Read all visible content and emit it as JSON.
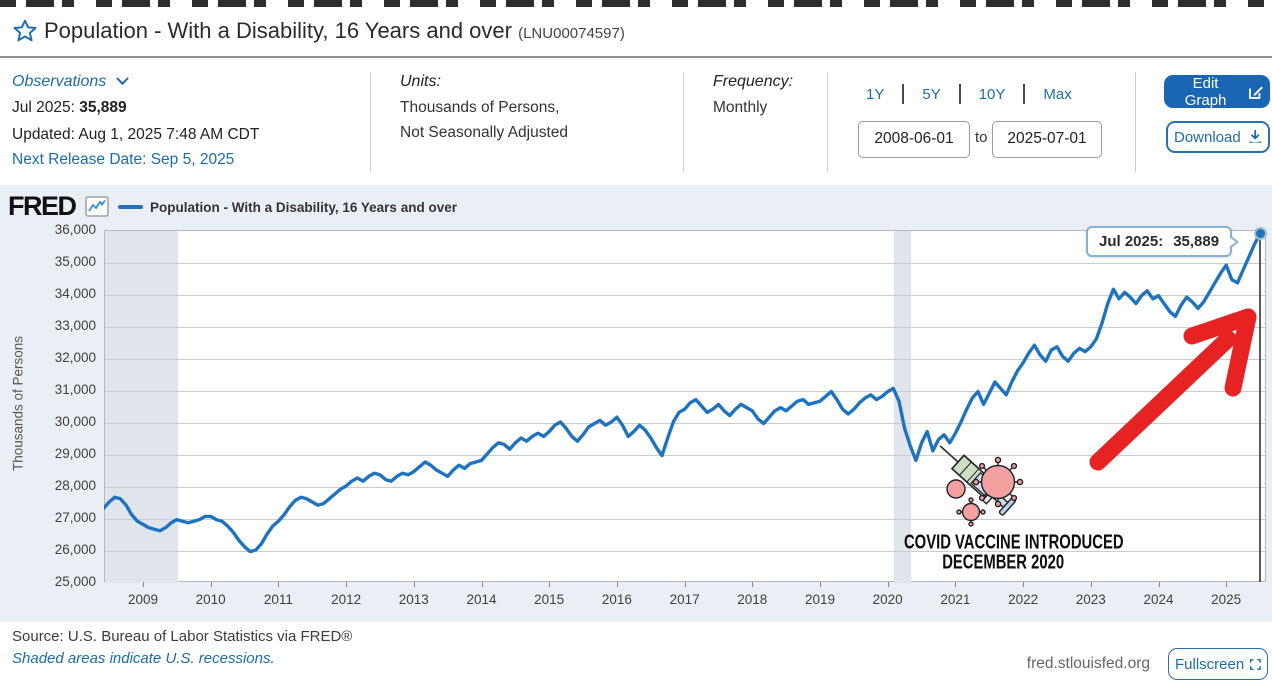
{
  "header": {
    "title": "Population - With a Disability, 16 Years and over",
    "series_id": "(LNU00074597)"
  },
  "observations": {
    "label": "Observations",
    "latest_label": "Jul 2025:",
    "latest_value": "35,889",
    "updated": "Updated: Aug 1, 2025 7:48 AM CDT",
    "next_release": "Next Release Date: Sep 5, 2025"
  },
  "units": {
    "label": "Units:",
    "line1": "Thousands of Persons,",
    "line2": "Not Seasonally Adjusted"
  },
  "frequency": {
    "label": "Frequency:",
    "value": "Monthly"
  },
  "range": {
    "presets": [
      "1Y",
      "5Y",
      "10Y",
      "Max"
    ],
    "start_date": "2008-06-01",
    "to_label": "to",
    "end_date": "2025-07-01"
  },
  "actions": {
    "edit_graph": "Edit Graph",
    "download": "Download",
    "fullscreen": "Fullscreen"
  },
  "chart": {
    "brand": "FRED",
    "legend": "Population - With a Disability, 16 Years and over",
    "y_axis_title": "Thousands of Persons",
    "tooltip_label": "Jul 2025:",
    "tooltip_value": "35,889"
  },
  "annotations": {
    "covid_line1": "COVID VACCINE INTRODUCED",
    "covid_line2": "DECEMBER 2020",
    "arrow_color": "#e62222",
    "icons": [
      "syringe-icon",
      "virus-icon",
      "red-arrow-icon"
    ]
  },
  "footer": {
    "source": "Source: U.S. Bureau of Labor Statistics via FRED®",
    "recession_note": "Shaded areas indicate U.S. recessions.",
    "site": "fred.stlouisfed.org"
  },
  "colors": {
    "line": "#1e73c0",
    "link": "#1c6ca8",
    "chart_background": "#e9eff5",
    "recession_band": "#e0e5eb",
    "button_fill": "#1a66b3",
    "arrow": "#e62222"
  },
  "chart_data": {
    "type": "line",
    "title": "Population - With a Disability, 16 Years and over",
    "ylabel": "Thousands of Persons",
    "units": "Thousands of Persons, Not Seasonally Adjusted",
    "frequency": "monthly",
    "start": "2008-06",
    "end": "2025-07",
    "ylim": [
      25000,
      36000
    ],
    "yticks": [
      25000,
      26000,
      27000,
      28000,
      29000,
      30000,
      31000,
      32000,
      33000,
      34000,
      35000,
      36000
    ],
    "xticks": [
      2009,
      2010,
      2011,
      2012,
      2013,
      2014,
      2015,
      2016,
      2017,
      2018,
      2019,
      2020,
      2021,
      2022,
      2023,
      2024,
      2025
    ],
    "grid": "horizontal",
    "legend_position": "top-left",
    "recessions": [
      {
        "start": 2008.417,
        "end": 2009.5
      },
      {
        "start": 2020.083,
        "end": 2020.333
      }
    ],
    "last_point": {
      "label": "Jul 2025",
      "value": 35889
    },
    "values": [
      27300,
      27500,
      27650,
      27600,
      27400,
      27100,
      26900,
      26800,
      26700,
      26650,
      26600,
      26700,
      26850,
      26950,
      26900,
      26850,
      26900,
      26950,
      27050,
      27050,
      26950,
      26900,
      26750,
      26550,
      26300,
      26100,
      25950,
      26000,
      26200,
      26500,
      26750,
      26900,
      27100,
      27350,
      27550,
      27650,
      27600,
      27500,
      27400,
      27450,
      27600,
      27750,
      27900,
      28000,
      28150,
      28250,
      28150,
      28300,
      28400,
      28350,
      28200,
      28150,
      28300,
      28400,
      28350,
      28450,
      28600,
      28750,
      28650,
      28500,
      28400,
      28300,
      28500,
      28650,
      28550,
      28700,
      28750,
      28800,
      29000,
      29200,
      29350,
      29300,
      29150,
      29350,
      29500,
      29400,
      29550,
      29650,
      29550,
      29700,
      29900,
      30000,
      29800,
      29550,
      29400,
      29600,
      29850,
      29950,
      30050,
      29900,
      30000,
      30150,
      29900,
      29550,
      29700,
      29900,
      29750,
      29500,
      29200,
      28950,
      29500,
      30000,
      30300,
      30400,
      30600,
      30700,
      30500,
      30300,
      30400,
      30550,
      30350,
      30200,
      30400,
      30550,
      30450,
      30350,
      30100,
      29950,
      30150,
      30350,
      30450,
      30350,
      30500,
      30650,
      30700,
      30550,
      30600,
      30650,
      30800,
      30950,
      30700,
      30400,
      30250,
      30400,
      30600,
      30750,
      30850,
      30700,
      30800,
      30950,
      31050,
      30650,
      29800,
      29250,
      28800,
      29350,
      29700,
      29100,
      29450,
      29600,
      29350,
      29650,
      30000,
      30400,
      30750,
      30950,
      30550,
      30900,
      31250,
      31050,
      30850,
      31250,
      31600,
      31850,
      32150,
      32400,
      32100,
      31900,
      32250,
      32350,
      32050,
      31900,
      32150,
      32300,
      32200,
      32350,
      32600,
      33100,
      33700,
      34150,
      33850,
      34050,
      33900,
      33700,
      33950,
      34100,
      33850,
      33950,
      33700,
      33450,
      33300,
      33650,
      33900,
      33750,
      33550,
      33750,
      34050,
      34350,
      34650,
      34900,
      34450,
      34350,
      34750,
      35150,
      35550,
      35889
    ]
  }
}
